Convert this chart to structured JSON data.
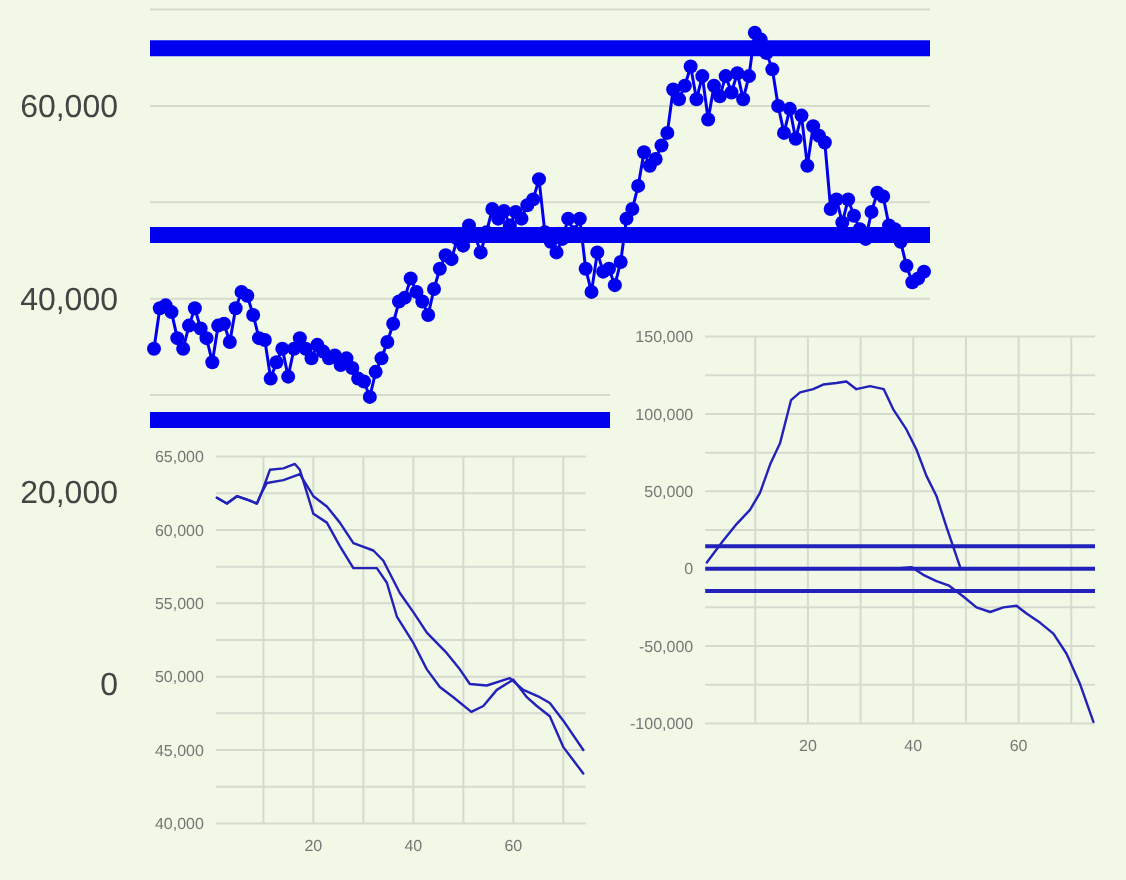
{
  "chart_data": [
    {
      "type": "line",
      "categories": [
        null,
        null,
        null,
        null,
        null,
        null,
        null,
        null,
        null,
        null,
        null,
        null,
        null,
        null,
        null,
        null,
        null,
        null,
        null,
        null,
        null,
        null,
        null,
        null,
        null,
        null,
        null,
        null,
        null,
        null,
        null,
        null,
        null,
        null,
        null,
        null,
        null,
        null,
        null,
        null,
        null,
        null,
        null,
        null,
        null,
        null,
        null,
        null,
        null,
        null,
        null,
        null,
        null,
        null,
        null,
        null,
        null,
        null,
        null,
        null,
        null,
        null,
        null,
        null,
        null,
        null,
        null,
        null,
        null,
        null,
        null,
        null,
        null,
        null,
        null,
        null,
        null,
        null,
        null,
        null,
        null,
        null,
        null,
        null,
        null,
        null,
        null,
        null,
        null,
        null,
        null,
        null,
        null,
        null,
        null,
        null,
        null,
        null,
        null,
        null,
        null,
        null,
        null,
        null,
        null,
        null,
        null,
        null,
        null,
        null,
        null,
        null,
        null,
        null,
        null,
        null,
        null,
        null,
        null,
        null,
        null,
        null,
        null,
        null,
        null,
        null,
        null,
        null,
        null,
        null,
        null,
        null,
        null
      ],
      "series": [
        {
          "color": "#0000ee",
          "values": [
            34800,
            39000,
            39300,
            38600,
            35900,
            34800,
            37200,
            39000,
            36900,
            35900,
            33400,
            37200,
            37400,
            35500,
            39000,
            40700,
            40300,
            38300,
            35900,
            35700,
            31700,
            33400,
            34800,
            31900,
            34800,
            35900,
            34800,
            33800,
            35200,
            34500,
            33800,
            34100,
            33100,
            33800,
            32800,
            31700,
            31400,
            29800,
            32400,
            33800,
            35500,
            37400,
            39700,
            40100,
            42100,
            40700,
            39700,
            38300,
            41000,
            43100,
            44500,
            44100,
            46200,
            45500,
            47600,
            46600,
            44800,
            46900,
            49300,
            48300,
            49100,
            47600,
            49000,
            48300,
            49700,
            50300,
            52400,
            46900,
            45900,
            44800,
            46200,
            48300,
            46900,
            48300,
            43100,
            40700,
            44800,
            42800,
            43100,
            41400,
            43800,
            48300,
            49300,
            51700,
            55200,
            53800,
            54500,
            55900,
            57200,
            61700,
            60700,
            62100,
            64100,
            60700,
            63100,
            58600,
            62100,
            61000,
            63100,
            61400,
            63400,
            60700,
            63100,
            67600,
            66900,
            65500,
            63800,
            60000,
            57200,
            59700,
            56600,
            59000,
            53800,
            57900,
            56900,
            56200,
            49300,
            50300,
            47900,
            50300,
            48600,
            47200,
            46200,
            49000,
            51000,
            50600,
            47600,
            47200,
            45900,
            43400,
            41700,
            42100,
            42800
          ]
        }
      ],
      "marker": "circle",
      "ref_lines": [
        {
          "axis": "y",
          "value": 66000,
          "color": "#0000ee"
        },
        {
          "axis": "y",
          "value": 46600,
          "color": "#0000ee"
        },
        {
          "axis": "y",
          "value": 27400,
          "color": "#0000ee"
        }
      ],
      "ylim": [
        0,
        70000
      ],
      "yticks": [
        {
          "value": 0,
          "label": "0"
        },
        {
          "value": 20000,
          "label": "20,000"
        },
        {
          "value": 30000,
          "label": null
        },
        {
          "value": 40000,
          "label": "40,000"
        },
        {
          "value": 50000,
          "label": null
        },
        {
          "value": 60000,
          "label": "60,000"
        },
        {
          "value": 70000,
          "label": null
        }
      ],
      "grid": "y",
      "tick_labels": "y"
    },
    {
      "type": "line",
      "series": [
        {
          "color": "#2222bb",
          "x": [
            0.7,
            2.7,
            4.7,
            7.3,
            8.7,
            9.6,
            11.3,
            14,
            16.3,
            17.3,
            20,
            22.7,
            25.3,
            28,
            32.7,
            34.7,
            36.7,
            40,
            42.7,
            45.3,
            48,
            51.6,
            54,
            56.7,
            60,
            62.7,
            64.7,
            67.3,
            70,
            72,
            74
          ],
          "values": [
            62200,
            61800,
            62300,
            62000,
            61800,
            62500,
            64100,
            64200,
            64500,
            64100,
            61100,
            60500,
            58900,
            57400,
            57400,
            56400,
            54100,
            52300,
            50500,
            49300,
            48600,
            47600,
            48000,
            49100,
            49800,
            48600,
            48000,
            47300,
            45200,
            44300,
            43400
          ]
        },
        {
          "color": "#2222bb",
          "x": [
            0.7,
            2.7,
            4.7,
            7.3,
            8.7,
            9.6,
            10.7,
            14,
            17.3,
            20,
            22.7,
            25.3,
            28,
            32,
            34,
            37.3,
            40,
            42.7,
            46.7,
            49.3,
            51.3,
            54.7,
            59.3,
            62,
            65.3,
            67.3,
            70,
            74
          ],
          "values": [
            62200,
            61800,
            62300,
            62000,
            61800,
            62500,
            63200,
            63400,
            63800,
            62300,
            61600,
            60500,
            59100,
            58600,
            57900,
            55700,
            54400,
            53000,
            51600,
            50500,
            49500,
            49400,
            49900,
            49100,
            48600,
            48200,
            47000,
            45000
          ]
        }
      ],
      "xlim": [
        0.5,
        74.5
      ],
      "xticks": [
        {
          "value": 10,
          "label": null
        },
        20,
        {
          "value": 30,
          "label": null
        },
        40,
        {
          "value": 50,
          "label": null
        },
        60,
        {
          "value": 70,
          "label": null
        }
      ],
      "ylim": [
        40000,
        65000
      ],
      "yticks": [
        {
          "value": 40000,
          "label": "40,000"
        },
        {
          "value": 42500,
          "label": null
        },
        {
          "value": 45000,
          "label": "45,000"
        },
        {
          "value": 47500,
          "label": null
        },
        {
          "value": 50000,
          "label": "50,000"
        },
        {
          "value": 52500,
          "label": null
        },
        {
          "value": 55000,
          "label": "55,000"
        },
        {
          "value": 57500,
          "label": null
        },
        {
          "value": 60000,
          "label": "60,000"
        },
        {
          "value": 62500,
          "label": null
        },
        {
          "value": 65000,
          "label": "65,000"
        }
      ],
      "grid": true
    },
    {
      "type": "line",
      "series": [
        {
          "color": "#2222bb",
          "x": [
            0.8,
            3.9,
            6.5,
            9,
            10.9,
            12.9,
            14.7,
            16.8,
            18.5,
            21,
            22.9,
            25.4,
            27.3,
            29.2,
            31.8,
            34.4,
            36.2,
            38.7,
            40.6,
            42.5,
            44.4,
            46.3,
            48.9
          ],
          "values": [
            4000,
            18000,
            29000,
            38000,
            49000,
            68000,
            81000,
            109000,
            114000,
            116000,
            119000,
            120000,
            121000,
            116000,
            118000,
            116000,
            103000,
            90000,
            77000,
            60000,
            47000,
            27000,
            1000
          ]
        },
        {
          "color": "#2222bb",
          "x": [
            36.2,
            39.7,
            41.9,
            44.4,
            46.8,
            49.5,
            52,
            54.6,
            57.1,
            59.6,
            61.5,
            64.1,
            66.6,
            69.1,
            71.6,
            74.2
          ],
          "values": [
            0,
            1000,
            -4000,
            -8000,
            -11000,
            -18000,
            -25000,
            -28000,
            -25000,
            -24000,
            -29000,
            -35000,
            -42000,
            -55000,
            -74000,
            -99000
          ]
        }
      ],
      "ref_lines": [
        {
          "axis": "y",
          "value": 14500,
          "color": "#2222bb"
        },
        {
          "axis": "y",
          "value": 0,
          "color": "#2222bb"
        },
        {
          "axis": "y",
          "value": -14500,
          "color": "#2222bb"
        }
      ],
      "xlim": [
        0.5,
        74.5
      ],
      "xticks": [
        {
          "value": 10,
          "label": null
        },
        20,
        {
          "value": 30,
          "label": null
        },
        40,
        {
          "value": 50,
          "label": null
        },
        60,
        {
          "value": 70,
          "label": null
        }
      ],
      "ylim": [
        -100000,
        150000
      ],
      "yticks": [
        {
          "value": -100000,
          "label": "-100,000"
        },
        {
          "value": -75000,
          "label": null
        },
        {
          "value": -50000,
          "label": "-50,000"
        },
        {
          "value": -25000,
          "label": null
        },
        {
          "value": 0,
          "label": "0"
        },
        {
          "value": 25000,
          "label": null
        },
        {
          "value": 50000,
          "label": "50,000"
        },
        {
          "value": 75000,
          "label": null
        },
        {
          "value": 100000,
          "label": "100,000"
        },
        {
          "value": 125000,
          "label": null
        },
        {
          "value": 150000,
          "label": "150,000"
        }
      ],
      "grid": true
    }
  ]
}
